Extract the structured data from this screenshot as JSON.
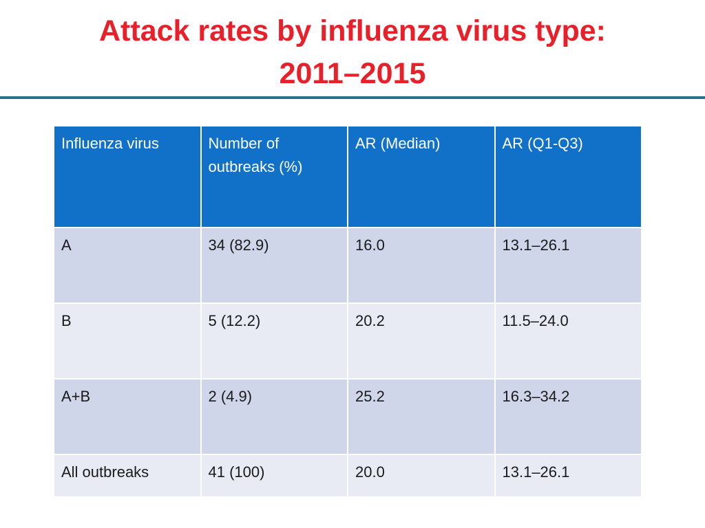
{
  "slide": {
    "title_line1": "Attack rates by influenza virus type:",
    "title_line2": "2011–2015",
    "title_color": "#e8202a",
    "rule_color": "#2a6f8e"
  },
  "table": {
    "header_color": "#1170c8",
    "row_colors": [
      "#cfd6e9",
      "#e8ebf4"
    ],
    "columns": [
      "Influenza virus",
      "Number of outbreaks (%)",
      "AR (Median)",
      "AR (Q1-Q3)"
    ],
    "rows": [
      [
        "A",
        "34 (82.9)",
        "16.0",
        "13.1–26.1"
      ],
      [
        "B",
        "5 (12.2)",
        "20.2",
        "11.5–24.0"
      ],
      [
        "A+B",
        "2 (4.9)",
        "25.2",
        "16.3–34.2"
      ],
      [
        "All outbreaks",
        "41 (100)",
        "20.0",
        "13.1–26.1"
      ]
    ]
  }
}
